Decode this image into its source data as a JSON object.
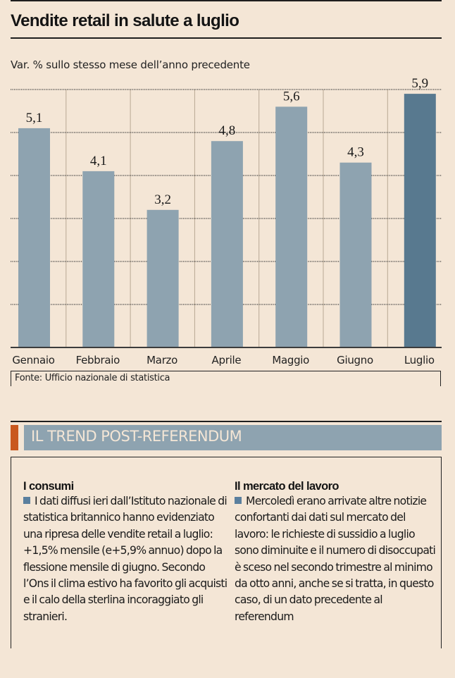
{
  "header": {
    "title": "Vendite retail in salute a luglio",
    "subtitle": "Var. % sullo stesso mese dell’anno precedente"
  },
  "chart_data": {
    "type": "bar",
    "title": "Vendite retail in salute a luglio",
    "subtitle": "Var. % sullo stesso mese dell’anno precedente",
    "xlabel": "",
    "ylabel": "",
    "categories": [
      "Gennaio",
      "Febbraio",
      "Marzo",
      "Aprile",
      "Maggio",
      "Giugno",
      "Luglio"
    ],
    "values": [
      5.1,
      4.1,
      3.2,
      4.8,
      5.6,
      4.3,
      5.9
    ],
    "value_labels": [
      "5,1",
      "4,1",
      "3,2",
      "4,8",
      "5,6",
      "4,3",
      "5,9"
    ],
    "ylim": [
      0,
      6
    ],
    "gridlines": [
      1,
      2,
      3,
      4,
      5,
      6
    ],
    "grid": true,
    "highlight_index": 6,
    "colors": {
      "bar": "#8ea3b0",
      "highlight": "#58798f",
      "grid": "#3a3a3a",
      "separator": "#b8a894",
      "axis": "#3c3c3c"
    },
    "source": "Fonte: Ufficio nazionale di statistica"
  },
  "section": {
    "title": "IL TREND POST-REFERENDUM",
    "accent_color": "#c9581e",
    "fill_color": "#8ea3b0"
  },
  "columns": [
    {
      "heading": "I consumi",
      "body": "I dati diffusi ieri dall’Istituto nazionale di statistica britannico hanno evidenziato una ripresa delle vendite retail a luglio: +1,5% mensile (e+5,9% annuo) dopo la flessione mensile di giugno. Secondo l’Ons il clima estivo ha favorito gli acquisti e il calo della sterlina incoraggiato gli stranieri."
    },
    {
      "heading": "Il mercato del lavoro",
      "body": "Mercoledì erano arrivate altre notizie confortanti dai dati sul mercato del lavoro: le richieste di sussidio a luglio sono diminuite e il numero di disoccupati è sceso nel secondo trimestre al minimo da otto anni, anche se si tratta, in questo caso, di un dato precedente al referendum"
    }
  ]
}
